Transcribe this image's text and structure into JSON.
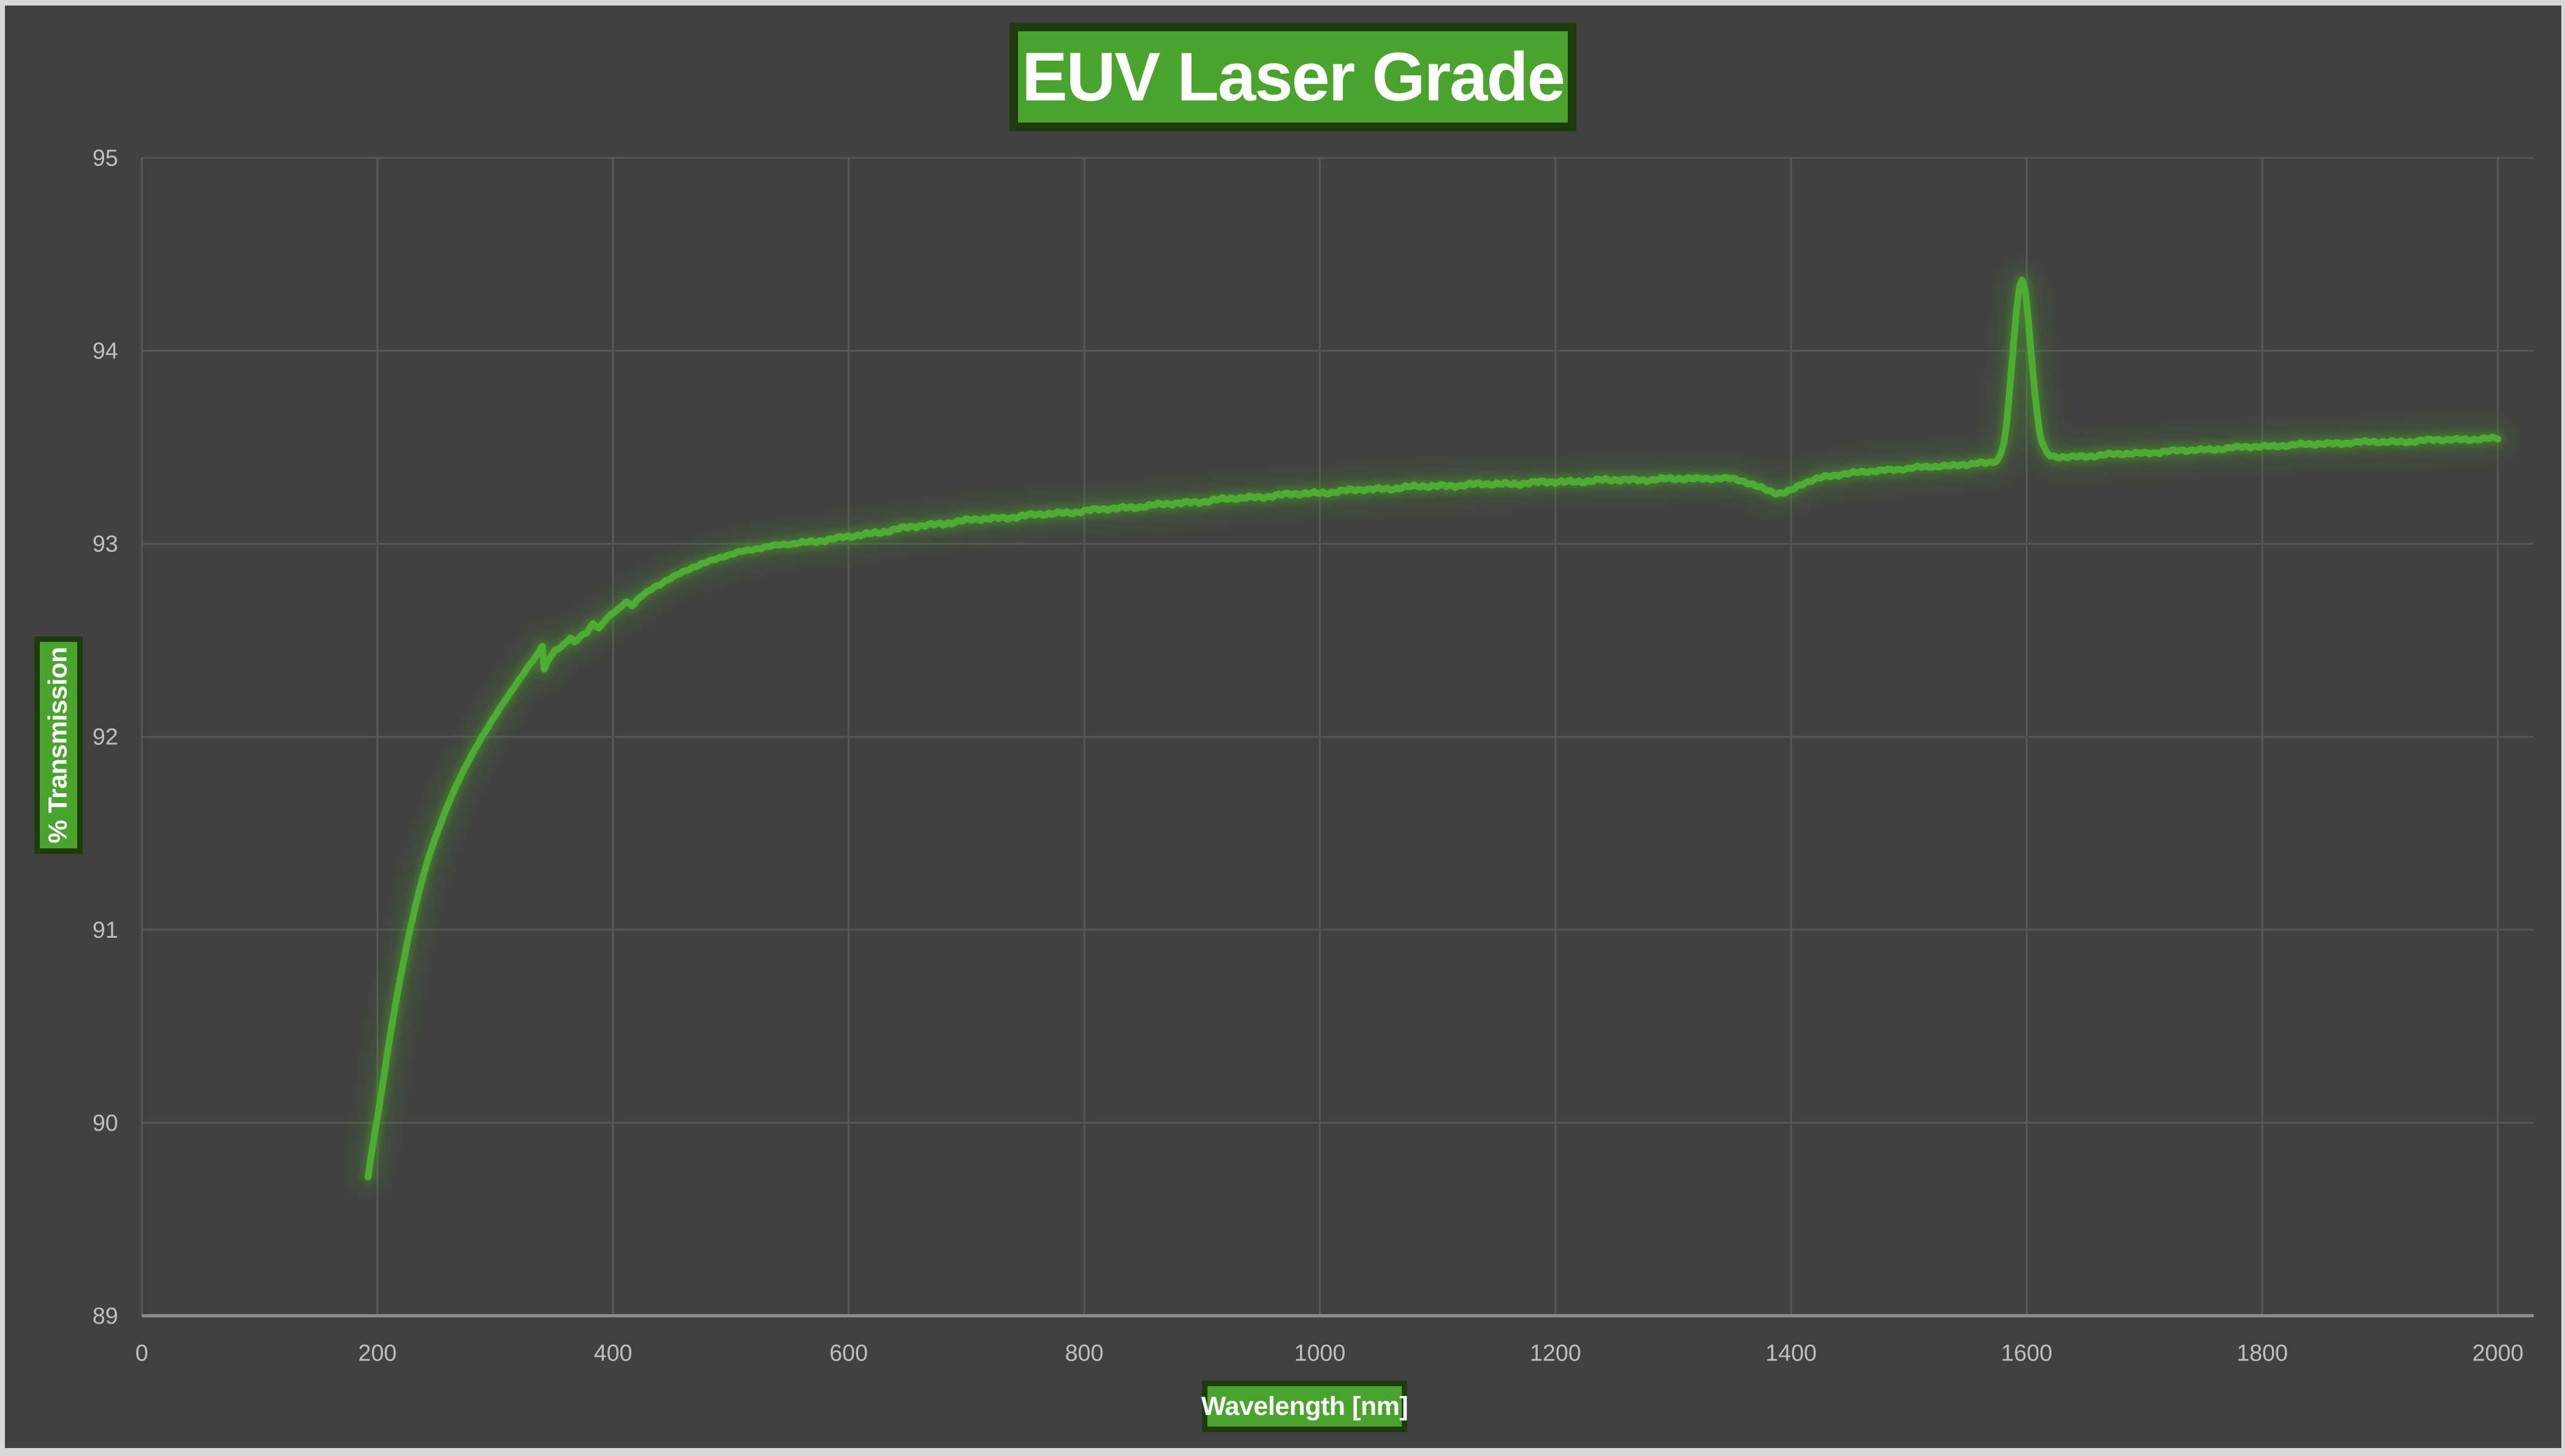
{
  "window": {
    "frame_color": "#d7d7d7",
    "background": "#414141"
  },
  "title": {
    "text": "EUV Laser Grade"
  },
  "axes": {
    "x": {
      "title": "Wavelength [nm]",
      "min": 0,
      "max": 2000,
      "tick_step": 200,
      "tick_labels": [
        "0",
        "200",
        "400",
        "600",
        "800",
        "1000",
        "1200",
        "1400",
        "1600",
        "1800",
        "2000"
      ]
    },
    "y": {
      "title": "% Transmission",
      "min": 89,
      "max": 95,
      "tick_step": 1,
      "tick_labels": [
        "89",
        "90",
        "91",
        "92",
        "93",
        "94",
        "95"
      ]
    }
  },
  "colors": {
    "accent_green": "#4aa32c",
    "accent_green_dark_border": "#1d3b0e",
    "curve_green": "#4dad32",
    "glow_green": "#4a9a2a",
    "background": "#414141",
    "frame": "#d7d7d7",
    "gridline": "#575757",
    "x_axis_line": "#8f8f8f",
    "y_axis_line": "#575757",
    "tick_text": "#c0bfbf",
    "title_text": "#ffffff"
  },
  "chart_data": {
    "type": "line",
    "title": "EUV Laser Grade",
    "xlabel": "Wavelength [nm]",
    "ylabel": "% Transmission",
    "xlim": [
      0,
      2000
    ],
    "ylim": [
      89,
      95
    ],
    "grid": true,
    "legend": false,
    "features": {
      "curve_start": [
        192,
        89.72
      ],
      "steep_uv_edge": "rises from 89.7% at 192nm to ~92.3% at 320nm",
      "kink_notch_nm": 340,
      "oh_absorption_dip": [
        1391,
        93.26
      ],
      "spike_peak": [
        1596,
        94.37
      ],
      "curve_end": [
        2000,
        93.545
      ]
    },
    "series": [
      {
        "name": "% Transmission",
        "color": "#4dad32",
        "glow": true,
        "points": [
          [
            192,
            89.72
          ],
          [
            196,
            89.88
          ],
          [
            200,
            90.03
          ],
          [
            205,
            90.22
          ],
          [
            210,
            90.42
          ],
          [
            215,
            90.6
          ],
          [
            221,
            90.8
          ],
          [
            227,
            90.98
          ],
          [
            233,
            91.14
          ],
          [
            239,
            91.28
          ],
          [
            246,
            91.42
          ],
          [
            253,
            91.54
          ],
          [
            260,
            91.65
          ],
          [
            268,
            91.76
          ],
          [
            276,
            91.86
          ],
          [
            285,
            91.96
          ],
          [
            294,
            92.05
          ],
          [
            303,
            92.14
          ],
          [
            313,
            92.23
          ],
          [
            322,
            92.31
          ],
          [
            330,
            92.38
          ],
          [
            335,
            92.42
          ],
          [
            338.5,
            92.455
          ],
          [
            340,
            92.47
          ],
          [
            341.5,
            92.35
          ],
          [
            344,
            92.385
          ],
          [
            349,
            92.43
          ],
          [
            355,
            92.465
          ],
          [
            360,
            92.49
          ],
          [
            364,
            92.515
          ],
          [
            367,
            92.49
          ],
          [
            372,
            92.52
          ],
          [
            378,
            92.54
          ],
          [
            383,
            92.585
          ],
          [
            388,
            92.565
          ],
          [
            394,
            92.61
          ],
          [
            400,
            92.64
          ],
          [
            406,
            92.665
          ],
          [
            411,
            92.7
          ],
          [
            416,
            92.68
          ],
          [
            422,
            92.72
          ],
          [
            429,
            92.75
          ],
          [
            437,
            92.78
          ],
          [
            447,
            92.815
          ],
          [
            458,
            92.85
          ],
          [
            470,
            92.885
          ],
          [
            484,
            92.915
          ],
          [
            500,
            92.945
          ],
          [
            518,
            92.97
          ],
          [
            538,
            92.99
          ],
          [
            558,
            93.005
          ],
          [
            580,
            93.02
          ],
          [
            605,
            93.04
          ],
          [
            635,
            93.07
          ],
          [
            665,
            93.095
          ],
          [
            700,
            93.12
          ],
          [
            740,
            93.14
          ],
          [
            780,
            93.16
          ],
          [
            820,
            93.18
          ],
          [
            860,
            93.2
          ],
          [
            900,
            93.22
          ],
          [
            950,
            93.245
          ],
          [
            1000,
            93.265
          ],
          [
            1050,
            93.285
          ],
          [
            1100,
            93.3
          ],
          [
            1150,
            93.31
          ],
          [
            1200,
            93.32
          ],
          [
            1250,
            93.33
          ],
          [
            1300,
            93.335
          ],
          [
            1335,
            93.34
          ],
          [
            1355,
            93.33
          ],
          [
            1370,
            93.3
          ],
          [
            1382,
            93.275
          ],
          [
            1391,
            93.26
          ],
          [
            1400,
            93.275
          ],
          [
            1410,
            93.31
          ],
          [
            1422,
            93.335
          ],
          [
            1438,
            93.355
          ],
          [
            1460,
            93.37
          ],
          [
            1485,
            93.385
          ],
          [
            1510,
            93.395
          ],
          [
            1535,
            93.405
          ],
          [
            1558,
            93.415
          ],
          [
            1572,
            93.425
          ],
          [
            1578,
            93.47
          ],
          [
            1583,
            93.62
          ],
          [
            1587,
            93.9
          ],
          [
            1591,
            94.18
          ],
          [
            1594,
            94.33
          ],
          [
            1596,
            94.37
          ],
          [
            1599,
            94.3
          ],
          [
            1603,
            94.05
          ],
          [
            1607,
            93.78
          ],
          [
            1611,
            93.58
          ],
          [
            1615,
            93.49
          ],
          [
            1620,
            93.455
          ],
          [
            1630,
            93.45
          ],
          [
            1650,
            93.455
          ],
          [
            1680,
            93.465
          ],
          [
            1710,
            93.475
          ],
          [
            1740,
            93.485
          ],
          [
            1770,
            93.495
          ],
          [
            1800,
            93.505
          ],
          [
            1840,
            93.515
          ],
          [
            1880,
            93.525
          ],
          [
            1920,
            93.53
          ],
          [
            1960,
            93.54
          ],
          [
            2000,
            93.545
          ]
        ]
      }
    ]
  }
}
